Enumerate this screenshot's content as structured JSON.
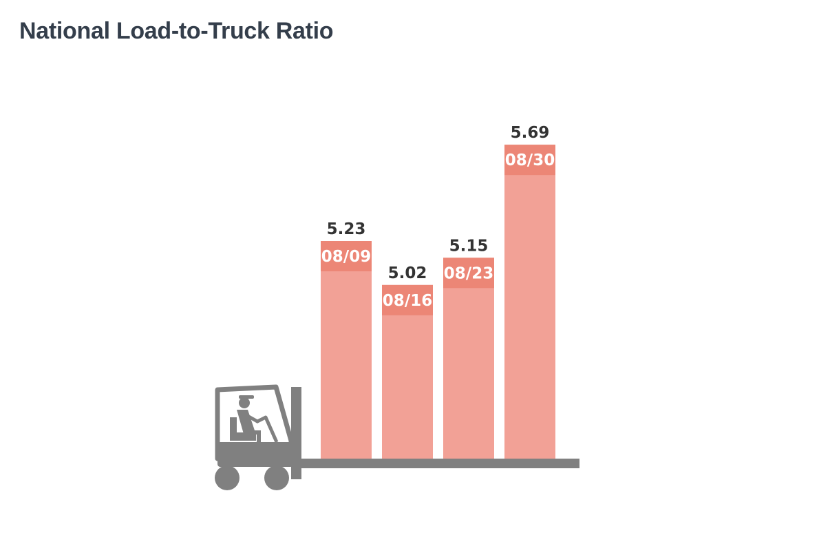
{
  "title": "National Load-to-Truck Ratio",
  "colors": {
    "bar": "#f2a196",
    "bar_cap": "#ec8676",
    "forklift": "#808080",
    "title": "#343e4b"
  },
  "chart_data": {
    "type": "bar",
    "title": "National Load-to-Truck Ratio",
    "categories": [
      "08/09",
      "08/16",
      "08/23",
      "08/30"
    ],
    "values": [
      5.23,
      5.02,
      5.15,
      5.69
    ],
    "value_labels": [
      "5.23",
      "5.02",
      "5.15",
      "5.69"
    ],
    "xlabel": "",
    "ylabel": "",
    "grid": false,
    "legend": "none",
    "axis_icon": "forklift-icon"
  }
}
